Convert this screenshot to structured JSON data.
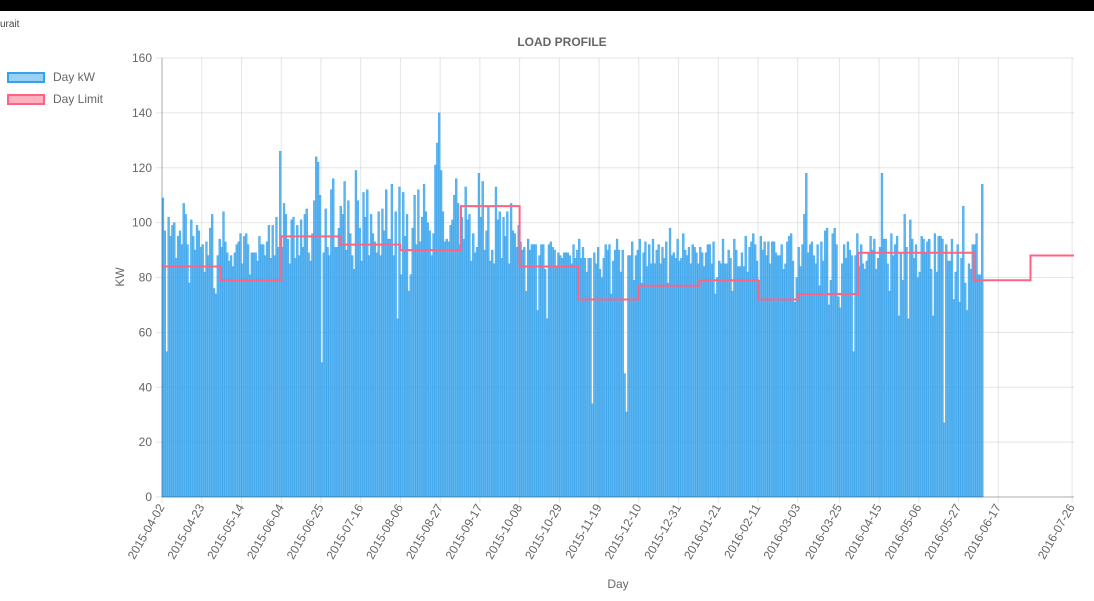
{
  "header": {
    "corner_text": "urait"
  },
  "chart_data": {
    "type": "bar",
    "title": "LOAD PROFILE",
    "xlabel": "Day",
    "ylabel": "KW",
    "ylim": [
      0,
      160
    ],
    "yticks": [
      0,
      20,
      40,
      60,
      80,
      100,
      120,
      140,
      160
    ],
    "grid": true,
    "legend_position": "left",
    "start_date": "2015-04-02",
    "end_date": "2016-07-26",
    "xtick_labels": [
      "2015-04-02",
      "2015-04-23",
      "2015-05-14",
      "2015-06-04",
      "2015-06-25",
      "2015-07-16",
      "2015-08-06",
      "2015-08-27",
      "2015-09-17",
      "2015-10-08",
      "2015-10-29",
      "2015-11-19",
      "2015-12-10",
      "2015-12-31",
      "2016-01-21",
      "2016-02-11",
      "2016-03-03",
      "2016-03-25",
      "2016-04-15",
      "2016-05-06",
      "2016-05-27",
      "2016-06-17",
      "2016-07-26"
    ],
    "series": [
      {
        "name": "Day kW",
        "type": "bar",
        "color": "#36a2eb",
        "fill": "rgba(54,162,235,0.8)",
        "values": [
          109,
          97,
          53,
          102,
          95,
          99,
          100,
          87,
          95,
          97,
          92,
          107,
          103,
          92,
          78,
          101,
          95,
          90,
          99,
          97,
          91,
          92,
          82,
          93,
          88,
          98,
          103,
          76,
          74,
          88,
          94,
          91,
          104,
          93,
          89,
          86,
          88,
          84,
          89,
          92,
          93,
          96,
          85,
          95,
          96,
          92,
          81,
          89,
          89,
          89,
          86,
          95,
          92,
          92,
          88,
          93,
          99,
          87,
          99,
          88,
          102,
          91,
          126,
          91,
          107,
          103,
          94,
          85,
          101,
          102,
          87,
          99,
          88,
          101,
          91,
          103,
          105,
          89,
          86,
          96,
          108,
          124,
          122,
          110,
          49,
          89,
          105,
          91,
          88,
          112,
          116,
          91,
          91,
          98,
          106,
          103,
          115,
          90,
          108,
          96,
          88,
          83,
          119,
          108,
          98,
          86,
          111,
          102,
          112,
          88,
          103,
          96,
          93,
          89,
          104,
          88,
          105,
          97,
          112,
          94,
          94,
          114,
          88,
          104,
          65,
          113,
          81,
          111,
          95,
          103,
          75,
          81,
          98,
          110,
          92,
          112,
          93,
          102,
          114,
          104,
          100,
          97,
          88,
          96,
          121,
          129,
          140,
          119,
          104,
          93,
          94,
          93,
          99,
          101,
          110,
          116,
          107,
          92,
          102,
          94,
          113,
          101,
          103,
          86,
          96,
          89,
          91,
          118,
          102,
          115,
          90,
          97,
          106,
          86,
          90,
          85,
          113,
          101,
          104,
          87,
          102,
          95,
          104,
          85,
          107,
          97,
          96,
          91,
          99,
          93,
          90,
          91,
          75,
          94,
          90,
          92,
          92,
          92,
          68,
          88,
          92,
          92,
          83,
          65,
          92,
          93,
          91,
          90,
          84,
          89,
          88,
          87,
          89,
          89,
          89,
          88,
          85,
          92,
          87,
          90,
          94,
          87,
          91,
          87,
          82,
          87,
          87,
          34,
          89,
          85,
          91,
          83,
          80,
          87,
          92,
          90,
          92,
          74,
          86,
          90,
          94,
          90,
          82,
          90,
          45,
          31,
          88,
          88,
          93,
          79,
          88,
          90,
          94,
          78,
          89,
          93,
          84,
          92,
          85,
          94,
          85,
          90,
          92,
          85,
          91,
          87,
          93,
          78,
          98,
          88,
          89,
          87,
          94,
          86,
          87,
          96,
          90,
          88,
          91,
          85,
          92,
          91,
          89,
          85,
          91,
          89,
          84,
          89,
          92,
          92,
          85,
          93,
          74,
          80,
          86,
          85,
          94,
          85,
          85,
          90,
          87,
          75,
          94,
          90,
          84,
          84,
          89,
          84,
          95,
          82,
          91,
          93,
          96,
          92,
          86,
          79,
          95,
          90,
          93,
          88,
          93,
          85,
          93,
          93,
          89,
          88,
          88,
          92,
          83,
          85,
          93,
          95,
          96,
          86,
          71,
          80,
          91,
          84,
          92,
          103,
          118,
          89,
          92,
          93,
          88,
          85,
          92,
          77,
          93,
          86,
          97,
          98,
          70,
          79,
          96,
          98,
          92,
          73,
          69,
          85,
          92,
          87,
          93,
          90,
          88,
          53,
          88,
          96,
          84,
          92,
          85,
          83,
          86,
          89,
          95,
          90,
          94,
          83,
          87,
          91,
          118,
          94,
          94,
          85,
          75,
          96,
          88,
          92,
          95,
          66,
          89,
          79,
          103,
          91,
          65,
          101,
          94,
          87,
          92,
          80,
          82,
          95,
          94,
          89,
          93,
          94,
          83,
          66,
          96,
          82,
          95,
          95,
          94,
          27,
          92,
          86,
          86,
          94,
          72,
          82,
          92,
          71,
          87,
          106,
          78,
          68,
          85,
          83,
          92,
          92,
          96,
          81,
          81,
          114
        ]
      },
      {
        "name": "Day Limit",
        "type": "line",
        "color": "#ff6384",
        "fill": "rgba(255,99,132,0.5)",
        "step_changes": [
          {
            "date": "2015-04-02",
            "value": 84
          },
          {
            "date": "2015-05-03",
            "value": 79
          },
          {
            "date": "2015-06-04",
            "value": 95
          },
          {
            "date": "2015-07-05",
            "value": 92
          },
          {
            "date": "2015-08-06",
            "value": 90
          },
          {
            "date": "2015-09-07",
            "value": 106
          },
          {
            "date": "2015-10-08",
            "value": 84
          },
          {
            "date": "2015-11-08",
            "value": 72
          },
          {
            "date": "2015-12-10",
            "value": 77
          },
          {
            "date": "2016-01-11",
            "value": 79
          },
          {
            "date": "2016-02-11",
            "value": 72
          },
          {
            "date": "2016-03-03",
            "value": 74
          },
          {
            "date": "2016-04-04",
            "value": 89
          },
          {
            "date": "2016-06-04",
            "value": 79
          },
          {
            "date": "2016-07-04",
            "value": 88
          }
        ]
      }
    ]
  }
}
